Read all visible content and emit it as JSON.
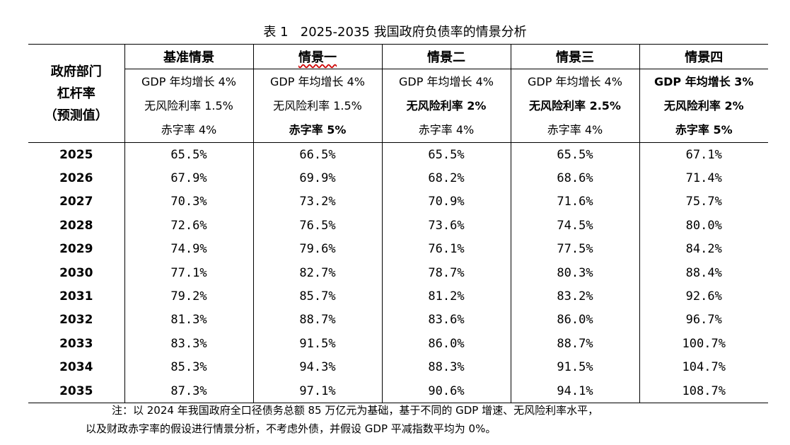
{
  "caption": "表 1   2025-2035 我国政府负债率的情景分析",
  "row_header": {
    "line1": "政府部门",
    "line2": "杠杆率",
    "line3": "（预测值）"
  },
  "scenarios": [
    {
      "name": "基准情景",
      "gdp": "GDP 年均增长 4%",
      "rate": "无风险利率 1.5%",
      "deficit": "赤字率 4%"
    },
    {
      "name": "情景一",
      "gdp": "GDP 年均增长 4%",
      "rate": "无风险利率 1.5%",
      "deficit": "赤字率 5%"
    },
    {
      "name": "情景二",
      "gdp": "GDP 年均增长 4%",
      "rate": "无风险利率 2%",
      "deficit": "赤字率 4%"
    },
    {
      "name": "情景三",
      "gdp": "GDP 年均增长 4%",
      "rate": "无风险利率 2.5%",
      "deficit": "赤字率 4%"
    },
    {
      "name": "情景四",
      "gdp": "GDP 年均增长 3%",
      "rate": "无风险利率 2%",
      "deficit": "赤字率 5%"
    }
  ],
  "rows": [
    {
      "year": "2025",
      "values": [
        "65.5%",
        "66.5%",
        "65.5%",
        "65.5%",
        "67.1%"
      ]
    },
    {
      "year": "2026",
      "values": [
        "67.9%",
        "69.9%",
        "68.2%",
        "68.6%",
        "71.4%"
      ]
    },
    {
      "year": "2027",
      "values": [
        "70.3%",
        "73.2%",
        "70.9%",
        "71.6%",
        "75.7%"
      ]
    },
    {
      "year": "2028",
      "values": [
        "72.6%",
        "76.5%",
        "73.6%",
        "74.5%",
        "80.0%"
      ]
    },
    {
      "year": "2029",
      "values": [
        "74.9%",
        "79.6%",
        "76.1%",
        "77.5%",
        "84.2%"
      ]
    },
    {
      "year": "2030",
      "values": [
        "77.1%",
        "82.7%",
        "78.7%",
        "80.3%",
        "88.4%"
      ]
    },
    {
      "year": "2031",
      "values": [
        "79.2%",
        "85.7%",
        "81.2%",
        "83.2%",
        "92.6%"
      ]
    },
    {
      "year": "2032",
      "values": [
        "81.3%",
        "88.7%",
        "83.6%",
        "86.0%",
        "96.7%"
      ]
    },
    {
      "year": "2033",
      "values": [
        "83.3%",
        "91.5%",
        "86.0%",
        "88.7%",
        "100.7%"
      ]
    },
    {
      "year": "2034",
      "values": [
        "85.3%",
        "94.3%",
        "88.3%",
        "91.5%",
        "104.7%"
      ]
    },
    {
      "year": "2035",
      "values": [
        "87.3%",
        "97.1%",
        "90.6%",
        "94.1%",
        "108.7%"
      ]
    }
  ],
  "note": {
    "line1": "注：以 2024 年我国政府全口径债务总额 85 万亿元为基础，基于不同的 GDP 增速、无风险利率水平，",
    "line2": "以及财政赤字率的假设进行情景分析，不考虑外债，并假设 GDP 平减指数平均为 0%。"
  }
}
